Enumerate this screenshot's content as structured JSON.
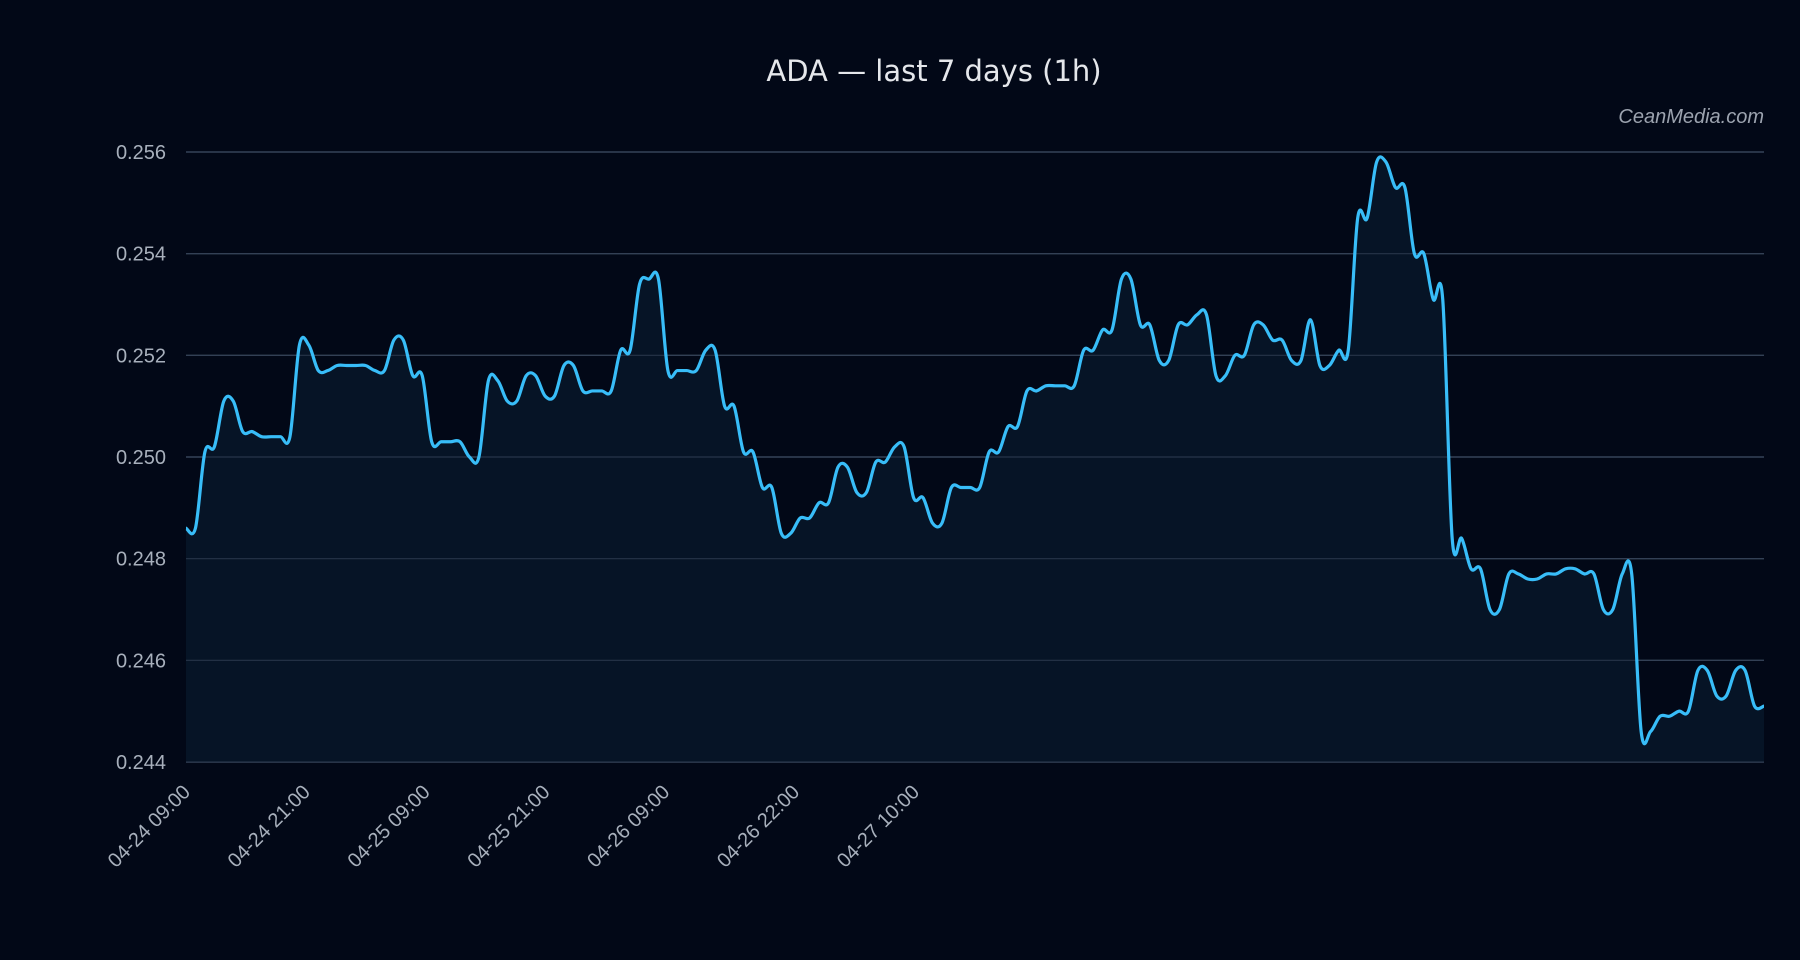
{
  "chart_data": {
    "type": "area",
    "title": "ADA — last 7 days (1h)",
    "watermark": "CeanMedia.com",
    "xlabel": "",
    "ylabel": "",
    "ylim": [
      0.244,
      0.256
    ],
    "y_ticks": [
      "0.256",
      "0.254",
      "0.252",
      "0.250",
      "0.248",
      "0.246",
      "0.244"
    ],
    "x_ticks": [
      "04-24 09:00",
      "04-24 21:00",
      "04-25 09:00",
      "04-25 21:00",
      "04-26 09:00",
      "04-26 22:00",
      "04-27 10:00"
    ],
    "grid": true,
    "colors": {
      "line": "#38bdf8",
      "fill": "#061527",
      "grid": "#334155",
      "background": "#020817"
    },
    "series": [
      {
        "values": [
          0.2486,
          0.2486,
          0.2501,
          0.2502,
          0.2511,
          0.2511,
          0.2505,
          0.2505,
          0.2504,
          0.2504,
          0.2504,
          0.2504,
          0.2522,
          0.2522,
          0.2517,
          0.2517,
          0.2518,
          0.2518,
          0.2518,
          0.2518,
          0.2517,
          0.2517,
          0.2523,
          0.2523,
          0.2516,
          0.2516,
          0.2503,
          0.2503,
          0.2503,
          0.2503,
          0.25,
          0.25,
          0.2515,
          0.2515,
          0.2511,
          0.2511,
          0.2516,
          0.2516,
          0.2512,
          0.2512,
          0.2518,
          0.2518,
          0.2513,
          0.2513,
          0.2513,
          0.2513,
          0.2521,
          0.2521,
          0.2534,
          0.2535,
          0.2535,
          0.2517,
          0.2517,
          0.2517,
          0.2517,
          0.2521,
          0.2521,
          0.251,
          0.251,
          0.2501,
          0.2501,
          0.2494,
          0.2494,
          0.2485,
          0.2485,
          0.2488,
          0.2488,
          0.2491,
          0.2491,
          0.2498,
          0.2498,
          0.2493,
          0.2493,
          0.2499,
          0.2499,
          0.2502,
          0.2502,
          0.2492,
          0.2492,
          0.2487,
          0.2487,
          0.2494,
          0.2494,
          0.2494,
          0.2494,
          0.2501,
          0.2501,
          0.2506,
          0.2506,
          0.2513,
          0.2513,
          0.2514,
          0.2514,
          0.2514,
          0.2514,
          0.2521,
          0.2521,
          0.2525,
          0.2525,
          0.2535,
          0.2535,
          0.2526,
          0.2526,
          0.2519,
          0.2519,
          0.2526,
          0.2526,
          0.2528,
          0.2528,
          0.2516,
          0.2516,
          0.252,
          0.252,
          0.2526,
          0.2526,
          0.2523,
          0.2523,
          0.2519,
          0.2519,
          0.2527,
          0.2518,
          0.2518,
          0.2521,
          0.2521,
          0.2547,
          0.2547,
          0.2558,
          0.2558,
          0.2553,
          0.2553,
          0.254,
          0.254,
          0.2531,
          0.2531,
          0.2484,
          0.2484,
          0.2478,
          0.2478,
          0.247,
          0.247,
          0.2477,
          0.2477,
          0.2476,
          0.2476,
          0.2477,
          0.2477,
          0.2478,
          0.2478,
          0.2477,
          0.2477,
          0.247,
          0.247,
          0.2477,
          0.2477,
          0.2446,
          0.2446,
          0.2449,
          0.2449,
          0.245,
          0.245,
          0.2458,
          0.2458,
          0.2453,
          0.2453,
          0.2458,
          0.2458,
          0.2451,
          0.2451
        ]
      }
    ]
  }
}
